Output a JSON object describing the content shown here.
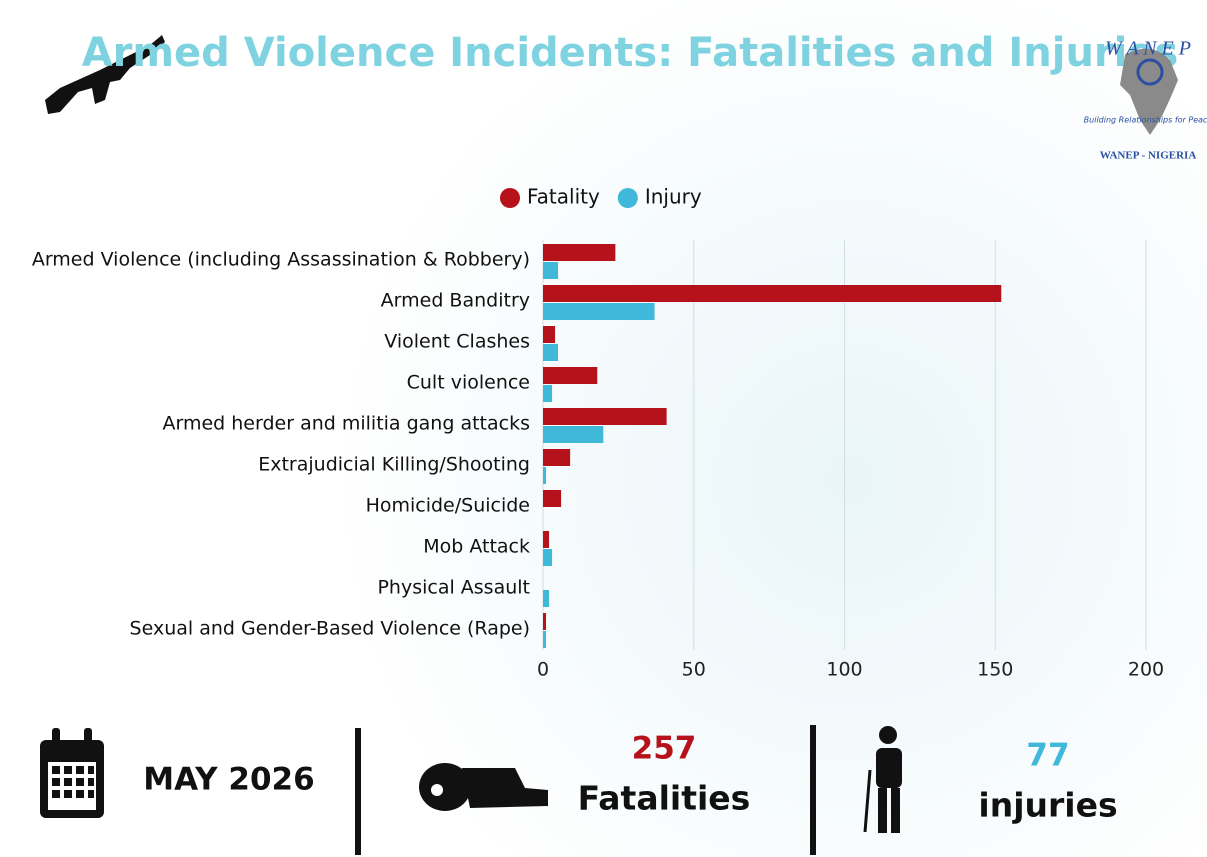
{
  "chart_data": {
    "type": "bar",
    "orientation": "horizontal",
    "title": "Armed Violence Incidents: Fatalities and Injuries",
    "categories": [
      "Armed Violence (including Assassination & Robbery)",
      "Armed Banditry",
      "Violent Clashes",
      "Cult violence",
      "Armed herder and militia gang attacks",
      "Extrajudicial Killing/Shooting",
      "Homicide/Suicide",
      "Mob Attack",
      "Physical Assault",
      "Sexual and Gender-Based Violence (Rape)"
    ],
    "series": [
      {
        "name": "Fatality",
        "color": "#b5121b",
        "values": [
          24,
          152,
          4,
          18,
          41,
          9,
          6,
          2,
          0,
          1
        ]
      },
      {
        "name": "Injury",
        "color": "#3fb8d9",
        "values": [
          5,
          37,
          5,
          3,
          20,
          1,
          0,
          3,
          2,
          1
        ]
      }
    ],
    "xlim": [
      0,
      200
    ],
    "xticks": [
      0,
      50,
      100,
      150,
      200
    ],
    "grid": true,
    "legend": "top"
  },
  "logo": {
    "name": "W A N E P",
    "motto": "Building Relationships for Peace",
    "chapter": "WANEP - NIGERIA"
  },
  "summary": {
    "period": "MAY 2026",
    "fatalities": 257,
    "fatalities_label": "Fatalities",
    "injuries": 77,
    "injuries_label": "injuries"
  }
}
